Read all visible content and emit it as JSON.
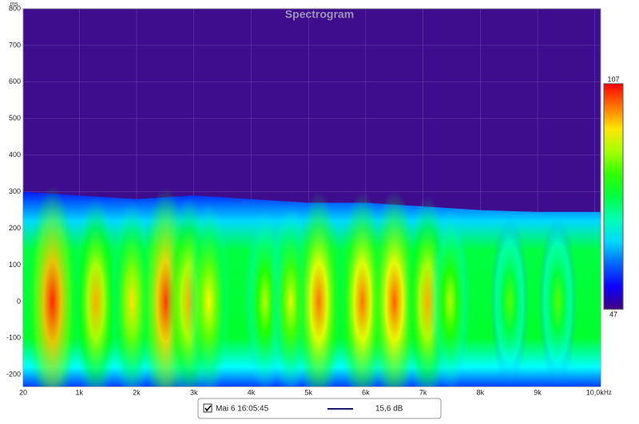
{
  "chart_data": {
    "type": "spectrogram",
    "title": "Spectrogram",
    "x_unit": "Hz",
    "y_unit": "ms",
    "xlim": [
      20,
      10100
    ],
    "xticks": [
      20,
      {
        "value": 1000,
        "label": "1k"
      },
      {
        "value": 2000,
        "label": "2k"
      },
      {
        "value": 3000,
        "label": "3k"
      },
      {
        "value": 4000,
        "label": "4k"
      },
      {
        "value": 5000,
        "label": "5k"
      },
      {
        "value": 6000,
        "label": "6k"
      },
      {
        "value": 7000,
        "label": "7k"
      },
      {
        "value": 8000,
        "label": "8k"
      },
      {
        "value": 9000,
        "label": "9k"
      },
      {
        "value": 10000,
        "label": "10,0k"
      }
    ],
    "ylim": [
      -232,
      800
    ],
    "yticks": [
      -200,
      -100,
      0,
      100,
      200,
      300,
      400,
      500,
      600,
      700,
      800
    ],
    "grid": true,
    "clim": [
      47,
      107
    ],
    "cticks": [
      47,
      107
    ],
    "envelope": {
      "x": [
        20,
        1000,
        2000,
        3000,
        4000,
        5000,
        6000,
        7000,
        8000,
        9000,
        10100
      ],
      "ms": [
        300,
        290,
        280,
        290,
        280,
        270,
        270,
        260,
        250,
        245,
        245
      ]
    },
    "peaks": {
      "x": [
        530,
        1290,
        1920,
        2510,
        2920,
        3260,
        4240,
        4690,
        5180,
        5940,
        6500,
        7080,
        7470,
        8510,
        9350
      ],
      "levels": [
        105,
        98,
        95,
        104,
        98,
        94,
        90,
        92,
        101,
        101,
        102,
        98,
        90,
        85,
        85
      ]
    },
    "legend": {
      "label": "Mai 6 16:05:45",
      "value": "15,6 dB",
      "color": "#1a1a6e"
    }
  }
}
